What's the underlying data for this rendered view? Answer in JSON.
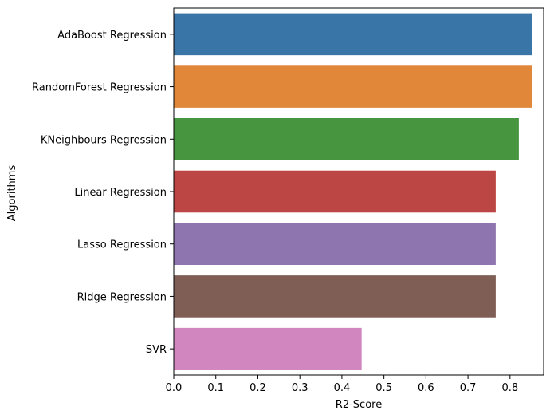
{
  "chart_data": {
    "type": "bar",
    "orientation": "horizontal",
    "title": "",
    "xlabel": "R2-Score",
    "ylabel": "Algorithms",
    "xlim": [
      0.0,
      0.88
    ],
    "xticks": [
      "0.0",
      "0.1",
      "0.2",
      "0.3",
      "0.4",
      "0.5",
      "0.6",
      "0.7",
      "0.8"
    ],
    "grid": false,
    "categories": [
      "AdaBoost Regression",
      "RandomForest Regression",
      "KNeighbours Regression",
      "Linear Regression",
      "Lasso Regression",
      "Ridge Regression",
      "SVR"
    ],
    "values": [
      0.853,
      0.853,
      0.821,
      0.766,
      0.766,
      0.766,
      0.447
    ],
    "colors": [
      "#3a75a8",
      "#e1873a",
      "#47963f",
      "#bc4643",
      "#8e75b0",
      "#7f5e55",
      "#d186bf"
    ]
  }
}
